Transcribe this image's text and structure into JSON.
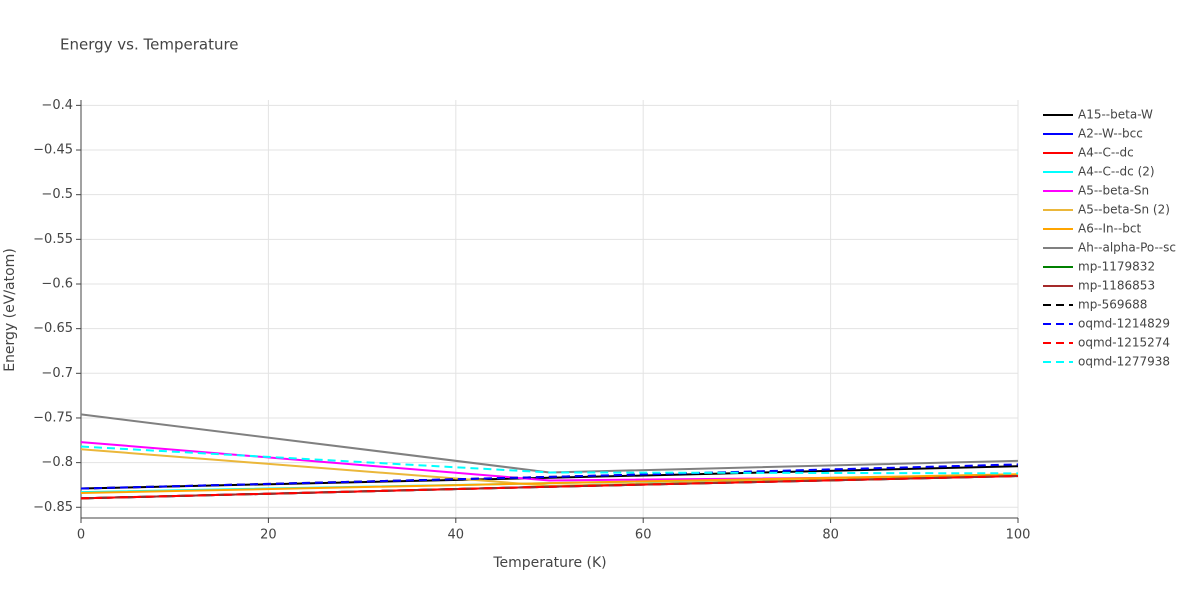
{
  "chart_data": {
    "type": "line",
    "title": "Energy vs. Temperature",
    "x_label": "Temperature (K)",
    "y_label": "Energy (eV/atom)",
    "x": [
      0,
      50,
      100
    ],
    "xlim": [
      0,
      100
    ],
    "xticks": [
      0,
      20,
      40,
      60,
      80,
      100
    ],
    "ylim": [
      -0.862,
      -0.394
    ],
    "yticks": [
      {
        "value": -0.4,
        "label": "−0.4"
      },
      {
        "value": -0.45,
        "label": "−0.45"
      },
      {
        "value": -0.5,
        "label": "−0.5"
      },
      {
        "value": -0.55,
        "label": "−0.55"
      },
      {
        "value": -0.6,
        "label": "−0.6"
      },
      {
        "value": -0.65,
        "label": "−0.65"
      },
      {
        "value": -0.7,
        "label": "−0.7"
      },
      {
        "value": -0.75,
        "label": "−0.75"
      },
      {
        "value": -0.8,
        "label": "−0.8"
      },
      {
        "value": -0.85,
        "label": "−0.85"
      }
    ],
    "grid": true,
    "legend": "right",
    "series": [
      {
        "name": "A15--beta-W",
        "color": "#000000",
        "dash": "solid",
        "values": [
          -0.829,
          -0.817,
          -0.804
        ]
      },
      {
        "name": "A2--W--bcc",
        "color": "#0000ff",
        "dash": "solid",
        "values": [
          -0.84,
          -0.827,
          -0.815
        ]
      },
      {
        "name": "A4--C--dc",
        "color": "#ff0000",
        "dash": "solid",
        "values": [
          -0.84,
          -0.827,
          -0.815
        ]
      },
      {
        "name": "A4--C--dc (2)",
        "color": "#00ffff",
        "dash": "solid",
        "values": [
          -0.833,
          -0.823,
          -0.814
        ]
      },
      {
        "name": "A5--beta-Sn",
        "color": "#ff00ff",
        "dash": "solid",
        "values": [
          -0.777,
          -0.82,
          -0.815
        ]
      },
      {
        "name": "A5--beta-Sn (2)",
        "color": "#ebb73a",
        "dash": "solid",
        "values": [
          -0.785,
          -0.826,
          -0.814
        ]
      },
      {
        "name": "A6--In--bct",
        "color": "#ffa500",
        "dash": "solid",
        "values": [
          -0.834,
          -0.823,
          -0.813
        ]
      },
      {
        "name": "Ah--alpha-Po--sc",
        "color": "#808080",
        "dash": "solid",
        "values": [
          -0.746,
          -0.811,
          -0.798
        ]
      },
      {
        "name": "mp-1179832",
        "color": "#008000",
        "dash": "solid",
        "values": [
          -0.84,
          -0.827,
          -0.815
        ]
      },
      {
        "name": "mp-1186853",
        "color": "#a52a2a",
        "dash": "solid",
        "values": [
          -0.84,
          -0.827,
          -0.815
        ]
      },
      {
        "name": "mp-569688",
        "color": "#000000",
        "dash": "dash",
        "values": [
          -0.829,
          -0.816,
          -0.803
        ]
      },
      {
        "name": "oqmd-1214829",
        "color": "#0000ff",
        "dash": "dash",
        "values": [
          -0.829,
          -0.816,
          -0.802
        ]
      },
      {
        "name": "oqmd-1215274",
        "color": "#ff0000",
        "dash": "dash",
        "values": [
          -0.84,
          -0.827,
          -0.815
        ]
      },
      {
        "name": "oqmd-1277938",
        "color": "#00ffff",
        "dash": "dash",
        "values": [
          -0.782,
          -0.811,
          -0.812
        ]
      }
    ]
  }
}
